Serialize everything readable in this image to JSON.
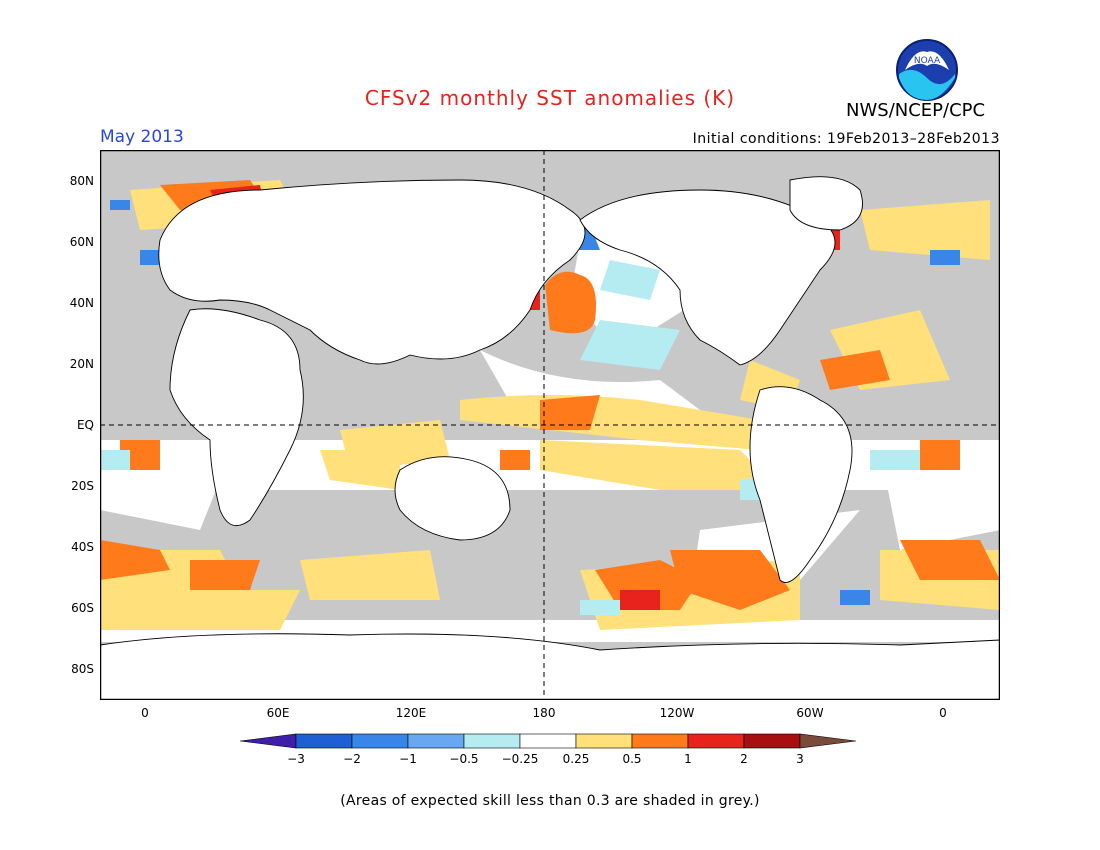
{
  "title": "CFSv2 monthly SST anomalies (K)",
  "month": "May 2013",
  "organization": "NWS/NCEP/CPC",
  "logo_text": "NOAA",
  "initial_conditions": "Initial conditions: 19Feb2013–28Feb2013",
  "footnote": "(Areas of expected skill less than 0.3 are shaded in grey.)",
  "map": {
    "lat_labels": [
      "80N",
      "60N",
      "40N",
      "20N",
      "EQ",
      "20S",
      "40S",
      "60S",
      "80S"
    ],
    "lon_labels": [
      "0",
      "60E",
      "120E",
      "180",
      "120W",
      "60W",
      "0"
    ],
    "land_color": "#ffffff",
    "grey_color": "#c8c8c8"
  },
  "colorbar": {
    "labels": [
      "−3",
      "−2",
      "−1",
      "−0.5",
      "−0.25",
      "0.25",
      "0.5",
      "1",
      "2",
      "3"
    ],
    "colors": [
      "#3f1fa8",
      "#1f5fd6",
      "#3a86e8",
      "#67a8f0",
      "#b4ecf2",
      "#ffffff",
      "#ffe07a",
      "#ff7a1a",
      "#e8221c",
      "#a80f10",
      "#7a4a3a"
    ]
  }
}
